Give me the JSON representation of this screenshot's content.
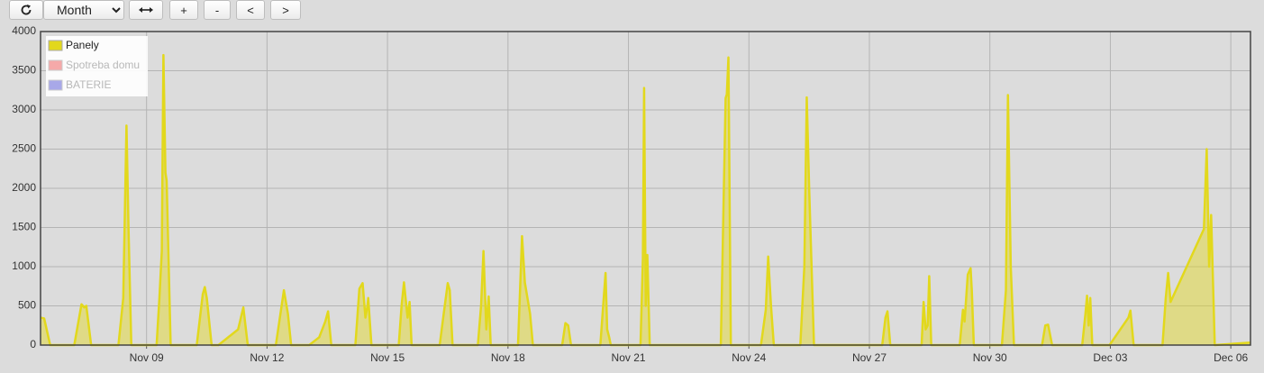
{
  "toolbar": {
    "period": "Month",
    "zoom_in": "+",
    "zoom_out": "-",
    "prev": "<",
    "next": ">"
  },
  "chart_data": {
    "type": "area",
    "x": [
      6.36,
      6.45,
      6.6,
      7.2,
      7.38,
      7.45,
      7.5,
      7.62,
      8.3,
      8.42,
      8.5,
      8.55,
      8.62,
      9.25,
      9.32,
      9.38,
      9.42,
      9.47,
      9.5,
      9.6,
      10.25,
      10.4,
      10.45,
      10.5,
      10.62,
      10.79,
      11.28,
      11.41,
      11.52,
      12.22,
      12.42,
      12.52,
      12.6,
      13.05,
      13.3,
      13.45,
      13.52,
      13.6,
      14.2,
      14.3,
      14.38,
      14.45,
      14.5,
      14.52,
      14.6,
      15.28,
      15.35,
      15.41,
      15.5,
      15.55,
      15.6,
      16.3,
      16.4,
      16.5,
      16.55,
      16.62,
      17.25,
      17.33,
      17.39,
      17.46,
      17.52,
      17.57,
      18.25,
      18.35,
      18.42,
      18.55,
      18.62,
      19.35,
      19.43,
      19.5,
      19.57,
      20.3,
      20.37,
      20.43,
      20.47,
      20.52,
      20.56,
      21.3,
      21.36,
      21.39,
      21.43,
      21.47,
      21.53,
      23.3,
      23.42,
      23.45,
      23.49,
      23.55,
      24.3,
      24.42,
      24.48,
      24.55,
      24.62,
      25.28,
      25.38,
      25.44,
      25.5,
      25.62,
      27.32,
      27.4,
      27.45,
      27.52,
      28.3,
      28.35,
      28.4,
      28.45,
      28.49,
      28.54,
      29.25,
      29.33,
      29.37,
      29.45,
      29.52,
      29.55,
      29.6,
      30.3,
      30.4,
      30.45,
      30.52,
      30.6,
      31.3,
      31.38,
      31.45,
      31.55,
      32.3,
      32.38,
      32.42,
      32.46,
      32.5,
      32.55,
      32.98,
      33.45,
      33.5,
      33.58,
      34.3,
      34.38,
      34.44,
      34.5,
      35.33,
      35.4,
      35.46,
      35.51,
      35.6,
      36.45,
      36.49
    ],
    "series": [
      {
        "name": "Panely",
        "color": "#e2d81c",
        "visible": true,
        "values": [
          350,
          340,
          0,
          0,
          520,
          480,
          500,
          0,
          0,
          600,
          2800,
          1500,
          0,
          0,
          600,
          1200,
          3700,
          2200,
          2100,
          0,
          0,
          650,
          740,
          600,
          0,
          0,
          200,
          480,
          0,
          0,
          700,
          400,
          0,
          0,
          100,
          300,
          430,
          0,
          0,
          720,
          790,
          350,
          500,
          600,
          0,
          0,
          500,
          800,
          350,
          550,
          0,
          0,
          400,
          790,
          700,
          0,
          0,
          500,
          1200,
          200,
          620,
          0,
          0,
          1390,
          800,
          400,
          0,
          0,
          280,
          250,
          0,
          0,
          500,
          920,
          200,
          100,
          0,
          0,
          1100,
          3280,
          500,
          1150,
          0,
          0,
          3150,
          3200,
          3670,
          0,
          0,
          450,
          1130,
          500,
          0,
          0,
          1000,
          3160,
          2000,
          0,
          0,
          350,
          430,
          0,
          0,
          550,
          200,
          250,
          880,
          0,
          0,
          450,
          300,
          900,
          980,
          700,
          0,
          0,
          700,
          3190,
          1000,
          0,
          0,
          250,
          260,
          0,
          0,
          400,
          630,
          250,
          600,
          0,
          0,
          350,
          440,
          0,
          0,
          600,
          920,
          550,
          1480,
          2500,
          1000,
          1660,
          0,
          30,
          30
        ]
      },
      {
        "name": "Spotreba domu",
        "color": "#f4a0a0",
        "visible": false
      },
      {
        "name": "BATERIE",
        "color": "#9f9fe6",
        "visible": false
      }
    ],
    "xlim": [
      6.36,
      36.49
    ],
    "xticks": [
      {
        "value": 9,
        "label": "Nov 09"
      },
      {
        "value": 12,
        "label": "Nov 12"
      },
      {
        "value": 15,
        "label": "Nov 15"
      },
      {
        "value": 18,
        "label": "Nov 18"
      },
      {
        "value": 21,
        "label": "Nov 21"
      },
      {
        "value": 24,
        "label": "Nov 24"
      },
      {
        "value": 27,
        "label": "Nov 27"
      },
      {
        "value": 30,
        "label": "Nov 30"
      },
      {
        "value": 33,
        "label": "Dec 03"
      },
      {
        "value": 36,
        "label": "Dec 06"
      }
    ],
    "ylim": [
      0,
      4000
    ],
    "yticks": [
      0,
      500,
      1000,
      1500,
      2000,
      2500,
      3000,
      3500,
      4000
    ],
    "grid": true,
    "legend": "top-left"
  }
}
